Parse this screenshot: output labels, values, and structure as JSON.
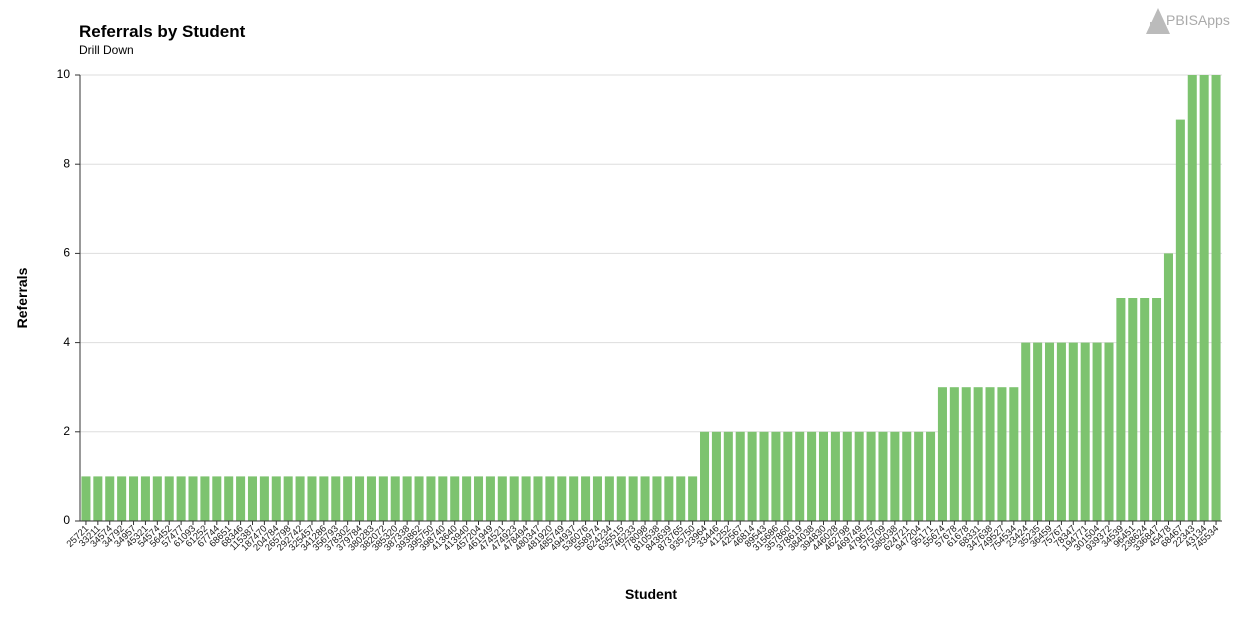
{
  "logo": "PBISApps",
  "chart_data": {
    "type": "bar",
    "title": "Referrals by Student",
    "subtitle": "Drill Down",
    "x_label": "Student",
    "y_label": "Referrals",
    "color": "#7dc36f",
    "grid": true,
    "ylim": [
      0,
      10
    ],
    "yticks": [
      0,
      2,
      4,
      6,
      8,
      10
    ],
    "categories": [
      "25721",
      "33211",
      "34574",
      "34792",
      "34957",
      "45321",
      "54574",
      "56452",
      "57477",
      "61093",
      "61252",
      "67744",
      "68651",
      "68346",
      "115387",
      "187470",
      "204784",
      "265798",
      "292742",
      "325457",
      "341286",
      "356793",
      "378302",
      "379784",
      "380283",
      "382072",
      "385320",
      "387338",
      "393862",
      "395750",
      "398740",
      "413640",
      "413940",
      "457204",
      "461949",
      "474521",
      "474923",
      "478494",
      "480347",
      "481920",
      "485749",
      "494937",
      "536076",
      "558974",
      "624234",
      "635515",
      "746233",
      "778098",
      "810538",
      "843639",
      "873765",
      "935750",
      "23964",
      "33446",
      "41252",
      "42567",
      "46814",
      "89543",
      "315686",
      "357860",
      "378619",
      "384038",
      "394830",
      "446028",
      "462798",
      "469749",
      "479675",
      "575709",
      "585038",
      "624721",
      "947204",
      "95171",
      "55674",
      "57678",
      "61678",
      "68331",
      "347638",
      "749527",
      "754534",
      "23424",
      "35235",
      "36459",
      "75767",
      "78347",
      "194771",
      "301504",
      "939372",
      "34539",
      "96451",
      "238624",
      "336847",
      "45478",
      "68467",
      "22343",
      "43134",
      "745534"
    ],
    "values": [
      1,
      1,
      1,
      1,
      1,
      1,
      1,
      1,
      1,
      1,
      1,
      1,
      1,
      1,
      1,
      1,
      1,
      1,
      1,
      1,
      1,
      1,
      1,
      1,
      1,
      1,
      1,
      1,
      1,
      1,
      1,
      1,
      1,
      1,
      1,
      1,
      1,
      1,
      1,
      1,
      1,
      1,
      1,
      1,
      1,
      1,
      1,
      1,
      1,
      1,
      1,
      1,
      2,
      2,
      2,
      2,
      2,
      2,
      2,
      2,
      2,
      2,
      2,
      2,
      2,
      2,
      2,
      2,
      2,
      2,
      2,
      2,
      3,
      3,
      3,
      3,
      3,
      3,
      3,
      4,
      4,
      4,
      4,
      4,
      4,
      4,
      4,
      5,
      5,
      5,
      5,
      6,
      9,
      10,
      10,
      10
    ]
  }
}
